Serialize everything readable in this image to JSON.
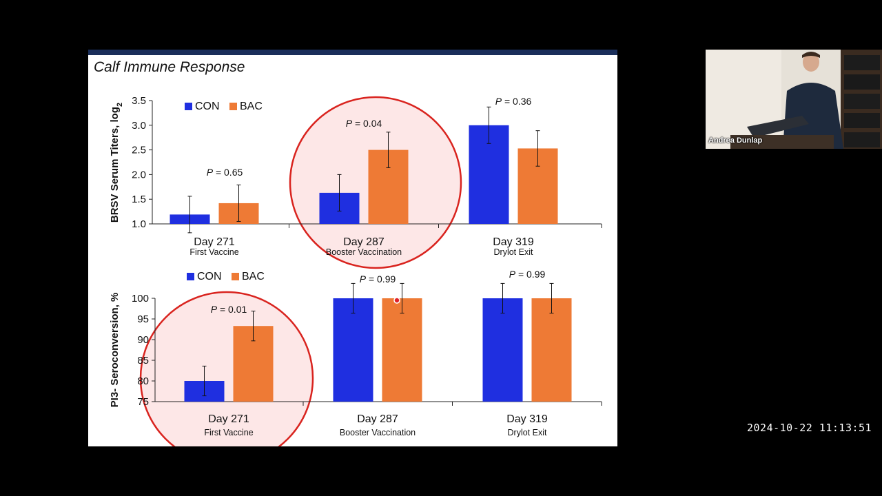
{
  "slide": {
    "title": "Calf Immune Response"
  },
  "webcam": {
    "name": "Andrea Dunlap"
  },
  "timestamp": "2024-10-22  11:13:51",
  "colors": {
    "con": "#1f2fe0",
    "bac": "#ee7a35",
    "highlight_fill": "#fde3e3",
    "highlight_stroke": "#d9241f"
  },
  "chart_data": [
    {
      "type": "bar",
      "ylabel": "BRSV Serum Titers, log₂",
      "ylim": [
        1.0,
        3.5
      ],
      "yticks": [
        "1.0",
        "1.5",
        "2.0",
        "2.5",
        "3.0",
        "3.5"
      ],
      "categories": [
        "Day 271",
        "Day 287",
        "Day 319"
      ],
      "sublabels": [
        "First Vaccine",
        "Booster Vaccination",
        "Drylot Exit"
      ],
      "legend": [
        "CON",
        "BAC"
      ],
      "series": [
        {
          "name": "CON",
          "values": [
            1.19,
            1.63,
            3.0
          ],
          "err": [
            0.37,
            0.37,
            0.37
          ]
        },
        {
          "name": "BAC",
          "values": [
            1.42,
            2.5,
            2.53
          ],
          "err": [
            0.37,
            0.36,
            0.36
          ]
        }
      ],
      "pvalues": [
        "P = 0.65",
        "P = 0.04",
        "P = 0.36"
      ],
      "highlighted_category": "Day 287"
    },
    {
      "type": "bar",
      "ylabel": "PI3- Seroconversion, %",
      "ylim": [
        75,
        100
      ],
      "yticks": [
        "75",
        "80",
        "85",
        "90",
        "95",
        "100"
      ],
      "categories": [
        "Day 271",
        "Day 287",
        "Day 319"
      ],
      "sublabels": [
        "First Vaccine",
        "Booster Vaccination",
        "Drylot Exit"
      ],
      "legend": [
        "CON",
        "BAC"
      ],
      "series": [
        {
          "name": "CON",
          "values": [
            80.0,
            100.0,
            100.0
          ],
          "err": [
            3.6,
            3.6,
            3.6
          ]
        },
        {
          "name": "BAC",
          "values": [
            93.3,
            100.0,
            100.0
          ],
          "err": [
            3.6,
            3.6,
            3.6
          ]
        }
      ],
      "pvalues": [
        "P = 0.01",
        "P = 0.99",
        "P = 0.99"
      ],
      "highlighted_category": "Day 271"
    }
  ]
}
